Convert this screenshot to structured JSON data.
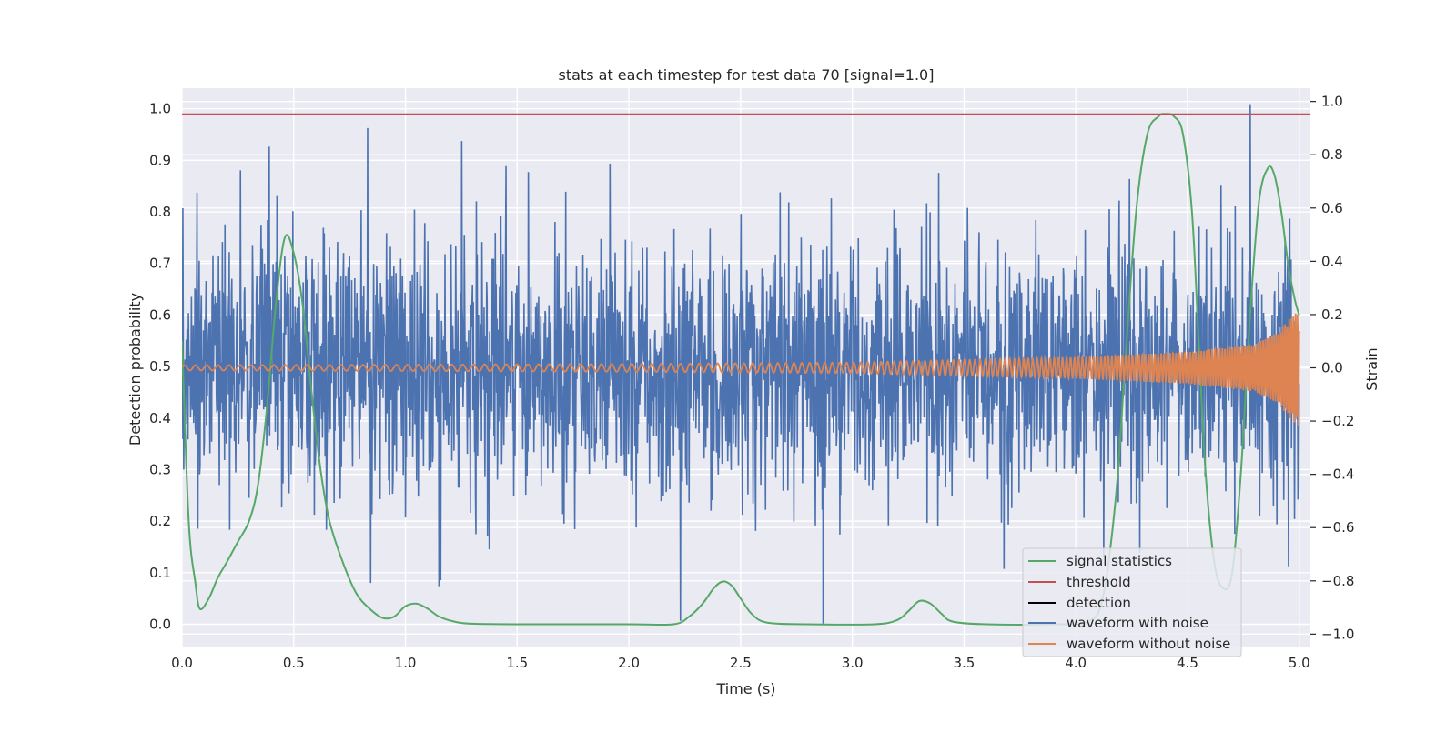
{
  "chart_data": {
    "type": "line",
    "title": "stats at each timestep for test data 70 [signal=1.0]",
    "xlabel": "Time (s)",
    "ylabel_left": "Detection probability",
    "ylabel_right": "Strain",
    "xlim": [
      0.0,
      5.05
    ],
    "ylim_left": [
      -0.045,
      1.04
    ],
    "ylim_right": [
      -1.05,
      1.05
    ],
    "xticks": [
      "0.0",
      "0.5",
      "1.0",
      "1.5",
      "2.0",
      "2.5",
      "3.0",
      "3.5",
      "4.0",
      "4.5",
      "5.0"
    ],
    "yticks_left": [
      "0.0",
      "0.1",
      "0.2",
      "0.3",
      "0.4",
      "0.5",
      "0.6",
      "0.7",
      "0.8",
      "0.9",
      "1.0"
    ],
    "yticks_right": [
      "−1.0",
      "−0.8",
      "−0.6",
      "−0.4",
      "−0.2",
      "0.0",
      "0.2",
      "0.4",
      "0.6",
      "0.8",
      "1.0"
    ],
    "grid": true,
    "legend_position": "lower-right",
    "threshold": 0.99,
    "series": [
      {
        "name": "signal statistics",
        "color": "#55a868",
        "axis": "left",
        "x": [
          0.0,
          0.03,
          0.06,
          0.08,
          0.12,
          0.16,
          0.2,
          0.25,
          0.3,
          0.34,
          0.38,
          0.42,
          0.46,
          0.5,
          0.54,
          0.58,
          0.62,
          0.66,
          0.72,
          0.78,
          0.84,
          0.9,
          0.95,
          1.0,
          1.05,
          1.1,
          1.15,
          1.22,
          1.3,
          1.5,
          2.0,
          2.2,
          2.27,
          2.33,
          2.38,
          2.42,
          2.46,
          2.5,
          2.55,
          2.62,
          2.8,
          3.1,
          3.2,
          3.25,
          3.3,
          3.35,
          3.4,
          3.45,
          3.6,
          3.9,
          4.05,
          4.12,
          4.18,
          4.22,
          4.27,
          4.32,
          4.37,
          4.4,
          4.44,
          4.48,
          4.52,
          4.55,
          4.58,
          4.62,
          4.66,
          4.7,
          4.74,
          4.78,
          4.82,
          4.86,
          4.89,
          4.92,
          4.95,
          4.98,
          5.0
        ],
        "y": [
          0.55,
          0.2,
          0.08,
          0.03,
          0.05,
          0.09,
          0.12,
          0.16,
          0.2,
          0.27,
          0.42,
          0.62,
          0.75,
          0.72,
          0.62,
          0.45,
          0.3,
          0.2,
          0.12,
          0.06,
          0.03,
          0.012,
          0.015,
          0.035,
          0.04,
          0.03,
          0.015,
          0.005,
          0.001,
          0.0,
          0.0,
          0.0,
          0.015,
          0.04,
          0.07,
          0.083,
          0.075,
          0.05,
          0.02,
          0.003,
          0.0,
          0.0,
          0.008,
          0.025,
          0.045,
          0.04,
          0.02,
          0.005,
          0.0,
          0.0,
          0.005,
          0.05,
          0.25,
          0.5,
          0.8,
          0.95,
          0.985,
          0.99,
          0.985,
          0.95,
          0.8,
          0.55,
          0.3,
          0.12,
          0.07,
          0.1,
          0.3,
          0.6,
          0.82,
          0.885,
          0.87,
          0.8,
          0.7,
          0.63,
          0.6
        ]
      },
      {
        "name": "threshold",
        "color": "#c44e52",
        "axis": "left"
      },
      {
        "name": "detection",
        "color": "#000000",
        "axis": "left"
      },
      {
        "name": "waveform with noise",
        "color": "#4c72b0",
        "axis": "right",
        "noise_amplitude": 0.33,
        "peak_abs": 0.99
      },
      {
        "name": "waveform without noise",
        "color": "#dd8452",
        "axis": "right",
        "amplitude_x": [
          0.0,
          1.0,
          2.0,
          3.0,
          3.5,
          4.0,
          4.5,
          4.8,
          4.9,
          4.97,
          5.0
        ],
        "amplitude_y": [
          0.01,
          0.012,
          0.015,
          0.02,
          0.03,
          0.04,
          0.06,
          0.09,
          0.13,
          0.2,
          0.22
        ],
        "frequency_start_hz": 20,
        "frequency_end_hz": 110
      }
    ]
  }
}
